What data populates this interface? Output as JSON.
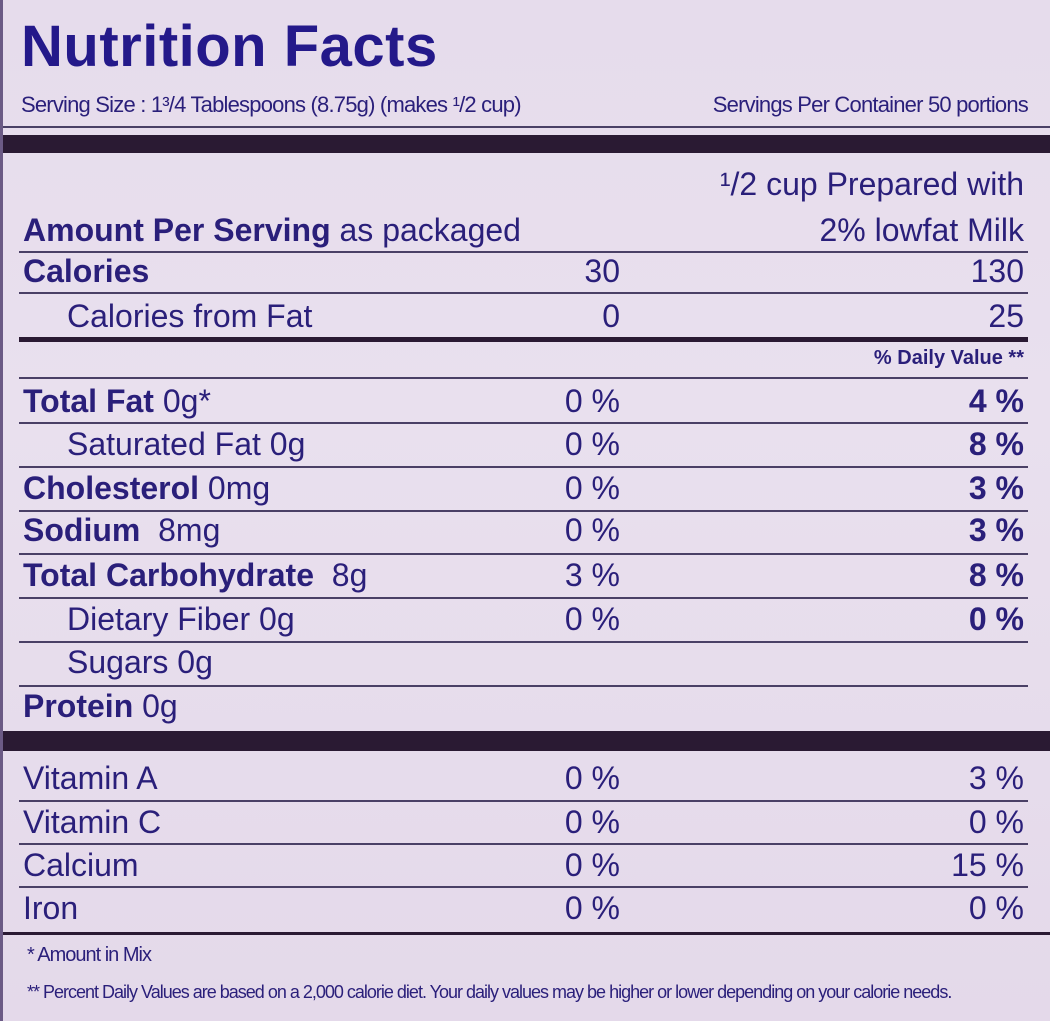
{
  "title": "Nutrition Facts",
  "serving_size": "Serving Size : 1³/4 Tablespoons (8.75g) (makes ¹/2 cup)",
  "servings_per_container": "Servings Per Container 50 portions",
  "header": {
    "amount_label": "Amount Per Serving",
    "col1": "as packaged",
    "col2_line1": "¹/2 cup Prepared with",
    "col2_line2": "2% lowfat Milk"
  },
  "calories": {
    "label": "Calories",
    "col1": "30",
    "col2": "130"
  },
  "calories_fat": {
    "label": "Calories from Fat",
    "col1": "0",
    "col2": "25"
  },
  "daily_value_label": "% Daily Value **",
  "nutrients": [
    {
      "name": "Total Fat",
      "amount": "0g*",
      "col1": "0 %",
      "col2": "4 %"
    },
    {
      "name": "Saturated Fat",
      "amount": "0g",
      "col1": "0 %",
      "col2": "8 %"
    },
    {
      "name": "Cholesterol",
      "amount": "0mg",
      "col1": "0 %",
      "col2": "3 %"
    },
    {
      "name": "Sodium",
      "amount": "8mg",
      "col1": "0 %",
      "col2": "3 %"
    },
    {
      "name": "Total Carbohydrate",
      "amount": "8g",
      "col1": "3 %",
      "col2": "8 %"
    },
    {
      "name": "Dietary Fiber",
      "amount": "0g",
      "col1": "0 %",
      "col2": "0 %"
    },
    {
      "name": "Sugars",
      "amount": "0g"
    },
    {
      "name": "Protein",
      "amount": "0g"
    }
  ],
  "vitamins": [
    {
      "name": "Vitamin A",
      "col1": "0 %",
      "col2": "3 %"
    },
    {
      "name": "Vitamin C",
      "col1": "0 %",
      "col2": "0 %"
    },
    {
      "name": "Calcium",
      "col1": "0 %",
      "col2": "15 %"
    },
    {
      "name": "Iron",
      "col1": "0 %",
      "col2": "0 %"
    }
  ],
  "footnotes": {
    "f1": "* Amount in Mix",
    "f2": "** Percent Daily Values are based on a 2,000 calorie diet. Your daily values may be higher or lower depending on your calorie needs."
  }
}
